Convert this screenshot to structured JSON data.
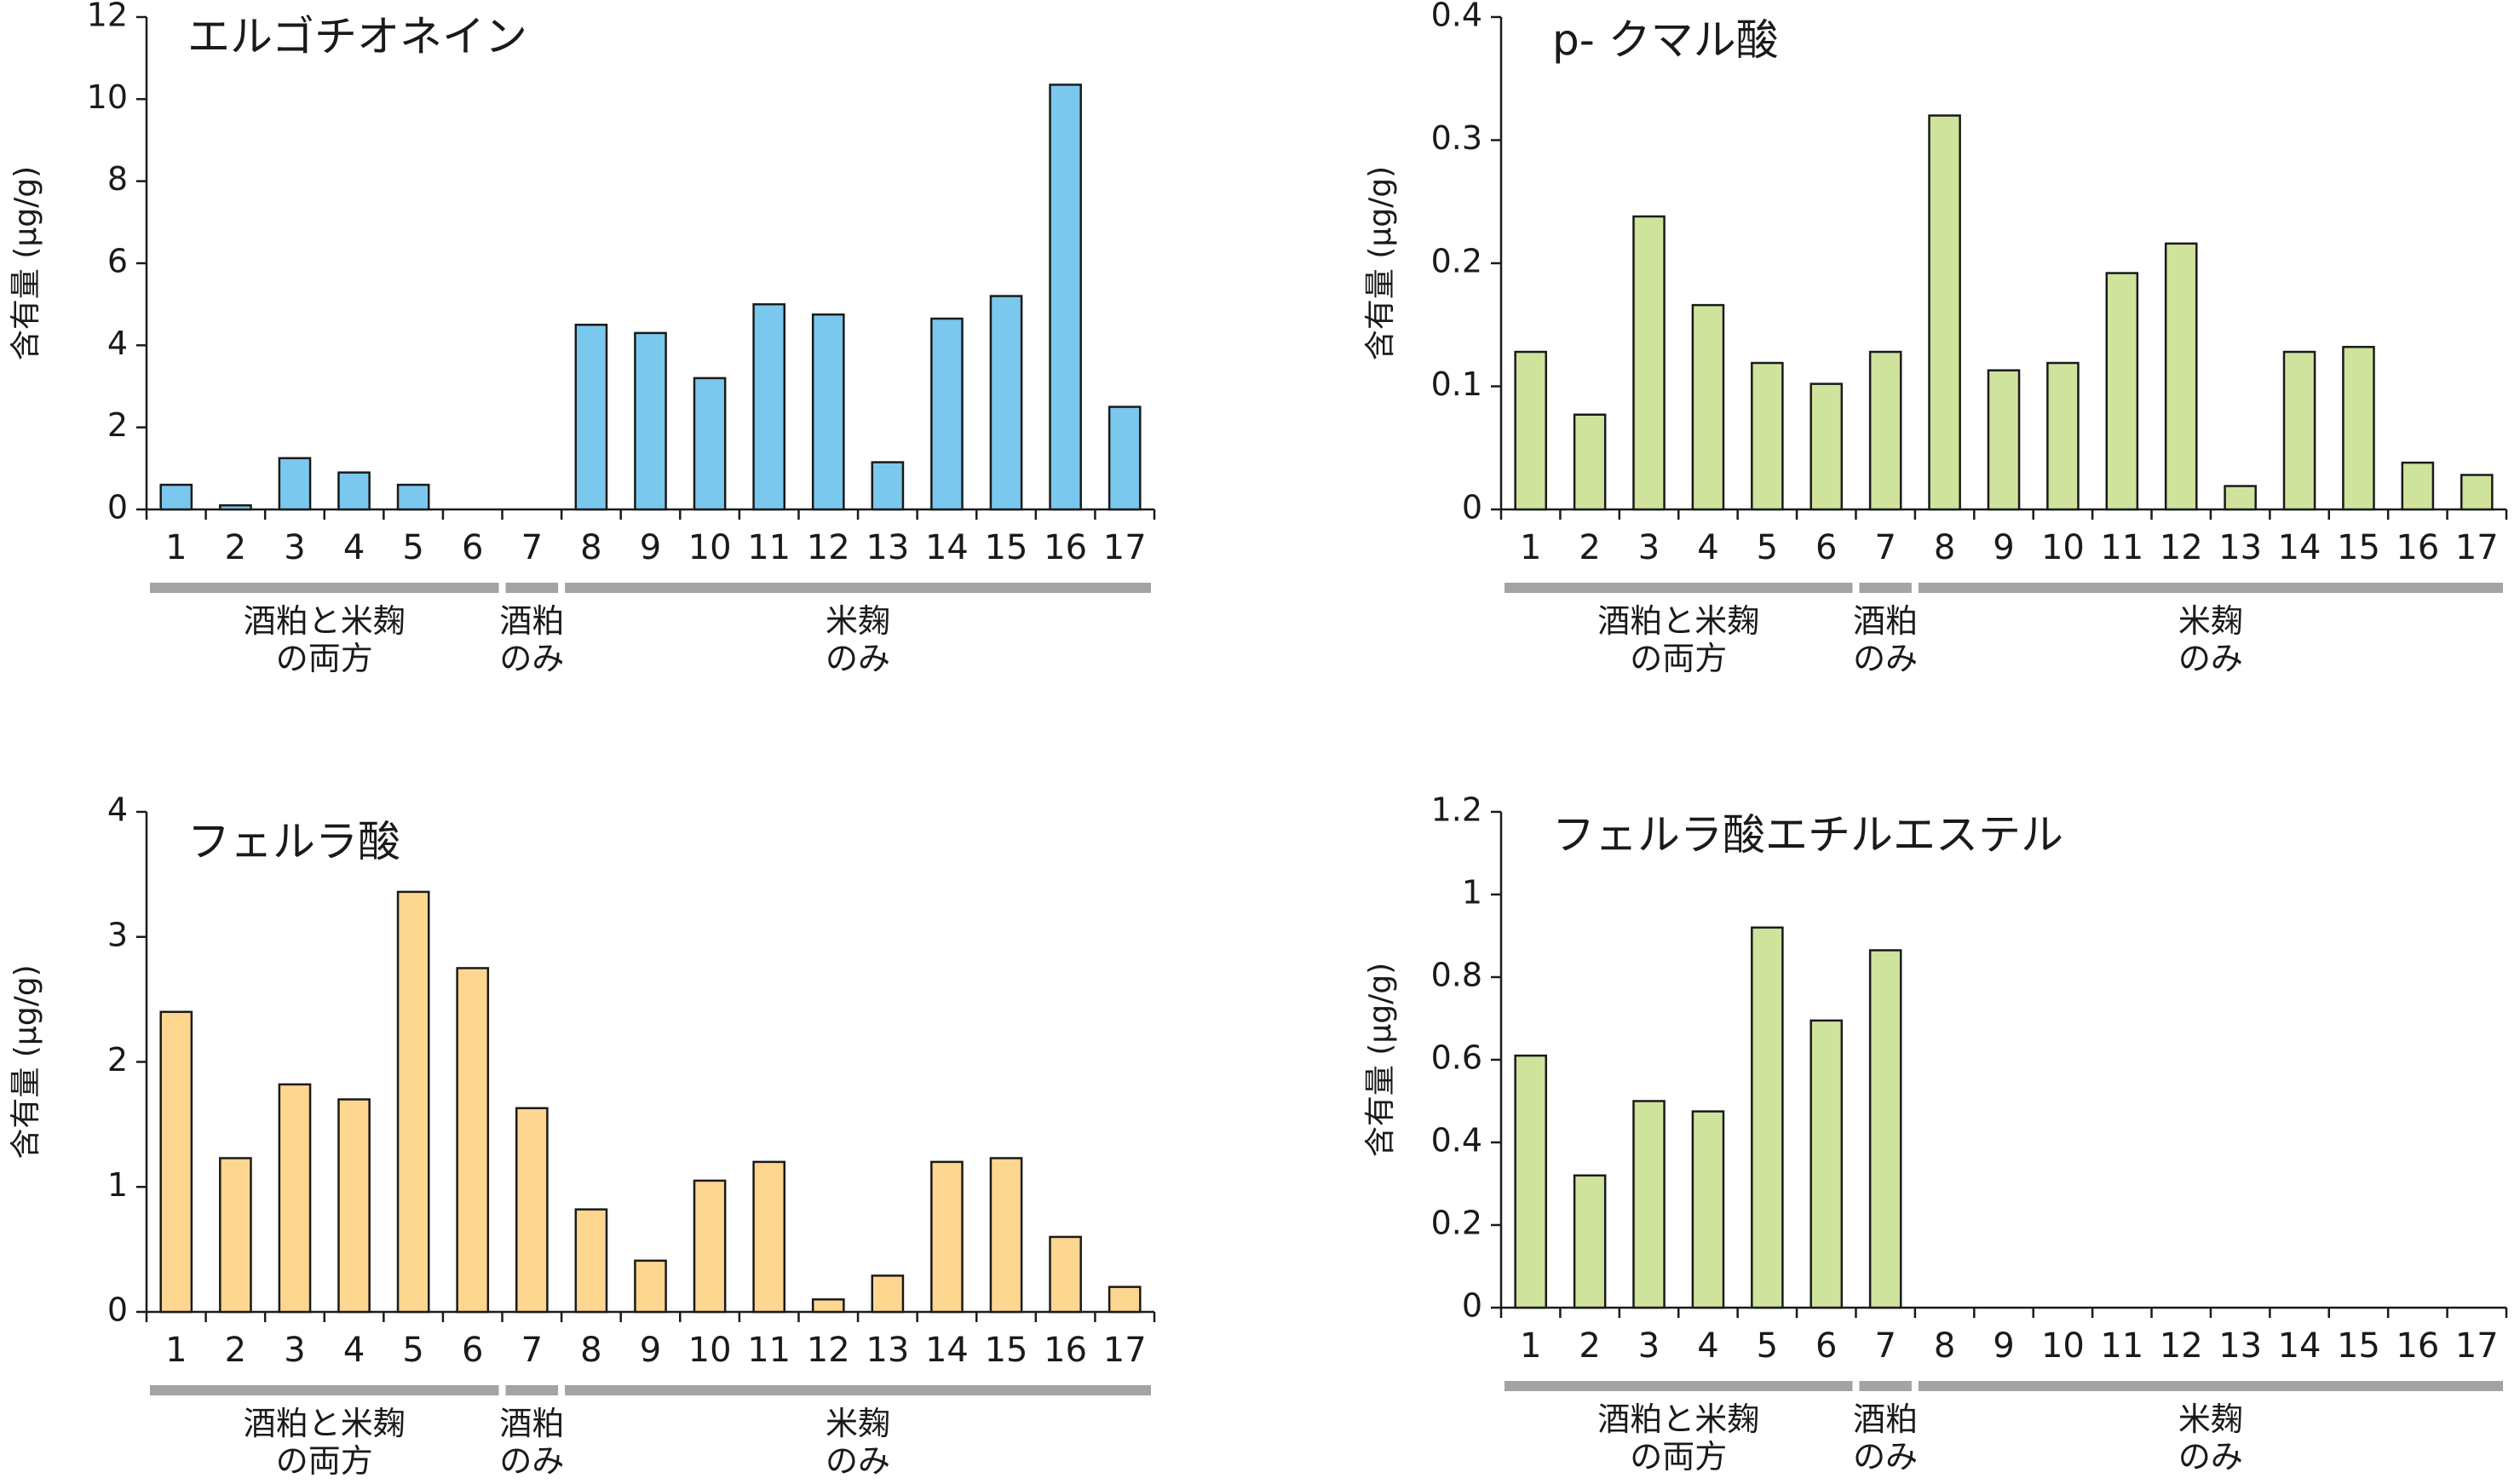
{
  "chart_data": [
    {
      "type": "bar",
      "title": "エルゴチオネイン",
      "ylabel": "含有量 (μg/g)",
      "ylim": [
        0,
        12
      ],
      "yticks": [
        "0",
        "2",
        "4",
        "6",
        "8",
        "10",
        "12"
      ],
      "categories": [
        "1",
        "2",
        "3",
        "4",
        "5",
        "6",
        "7",
        "8",
        "9",
        "10",
        "11",
        "12",
        "13",
        "14",
        "15",
        "16",
        "17"
      ],
      "values": [
        0.6,
        0.1,
        1.25,
        0.9,
        0.6,
        0,
        0,
        4.5,
        4.3,
        3.2,
        5.0,
        4.75,
        1.15,
        4.65,
        5.2,
        10.35,
        2.5
      ],
      "color": "#7ac8ee",
      "groups": [
        {
          "lines": [
            "酒粕と米麹",
            "の両方"
          ],
          "from": 1,
          "to": 6
        },
        {
          "lines": [
            "酒粕",
            "のみ"
          ],
          "from": 7,
          "to": 7
        },
        {
          "lines": [
            "米麹",
            "のみ"
          ],
          "from": 8,
          "to": 17
        }
      ]
    },
    {
      "type": "bar",
      "title": "p- クマル酸",
      "ylabel": "含有量 (μg/g)",
      "ylim": [
        0,
        0.4
      ],
      "yticks": [
        "0",
        "0.1",
        "0.2",
        "0.3",
        "0.4"
      ],
      "categories": [
        "1",
        "2",
        "3",
        "4",
        "5",
        "6",
        "7",
        "8",
        "9",
        "10",
        "11",
        "12",
        "13",
        "14",
        "15",
        "16",
        "17"
      ],
      "values": [
        0.128,
        0.077,
        0.238,
        0.166,
        0.119,
        0.102,
        0.128,
        0.32,
        0.113,
        0.119,
        0.192,
        0.216,
        0.019,
        0.128,
        0.132,
        0.038,
        0.028
      ],
      "color": "#cfe39d",
      "groups": [
        {
          "lines": [
            "酒粕と米麹",
            "の両方"
          ],
          "from": 1,
          "to": 6
        },
        {
          "lines": [
            "酒粕",
            "のみ"
          ],
          "from": 7,
          "to": 7
        },
        {
          "lines": [
            "米麹",
            "のみ"
          ],
          "from": 8,
          "to": 17
        }
      ]
    },
    {
      "type": "bar",
      "title": "フェルラ酸",
      "ylabel": "含有量 (μg/g)",
      "ylim": [
        0,
        4
      ],
      "yticks": [
        "0",
        "1",
        "2",
        "3",
        "4"
      ],
      "categories": [
        "1",
        "2",
        "3",
        "4",
        "5",
        "6",
        "7",
        "8",
        "9",
        "10",
        "11",
        "12",
        "13",
        "14",
        "15",
        "16",
        "17"
      ],
      "values": [
        2.4,
        1.23,
        1.82,
        1.7,
        3.36,
        2.75,
        1.63,
        0.82,
        0.41,
        1.05,
        1.2,
        0.1,
        0.29,
        1.2,
        1.23,
        0.6,
        0.2
      ],
      "color": "#fdd68f",
      "groups": [
        {
          "lines": [
            "酒粕と米麹",
            "の両方"
          ],
          "from": 1,
          "to": 6
        },
        {
          "lines": [
            "酒粕",
            "のみ"
          ],
          "from": 7,
          "to": 7
        },
        {
          "lines": [
            "米麹",
            "のみ"
          ],
          "from": 8,
          "to": 17
        }
      ]
    },
    {
      "type": "bar",
      "title": "フェルラ酸エチルエステル",
      "ylabel": "含有量 (μg/g)",
      "ylim": [
        0,
        1.2
      ],
      "yticks": [
        "0",
        "0.2",
        "0.4",
        "0.6",
        "0.8",
        "1",
        "1.2"
      ],
      "categories": [
        "1",
        "2",
        "3",
        "4",
        "5",
        "6",
        "7",
        "8",
        "9",
        "10",
        "11",
        "12",
        "13",
        "14",
        "15",
        "16",
        "17"
      ],
      "values": [
        0.61,
        0.32,
        0.5,
        0.475,
        0.92,
        0.695,
        0.865,
        0,
        0,
        0,
        0,
        0,
        0,
        0,
        0,
        0,
        0
      ],
      "color": "#cfe39d",
      "groups": [
        {
          "lines": [
            "酒粕と米麹",
            "の両方"
          ],
          "from": 1,
          "to": 6
        },
        {
          "lines": [
            "酒粕",
            "のみ"
          ],
          "from": 7,
          "to": 7
        },
        {
          "lines": [
            "米麹",
            "のみ"
          ],
          "from": 8,
          "to": 17
        }
      ]
    }
  ]
}
